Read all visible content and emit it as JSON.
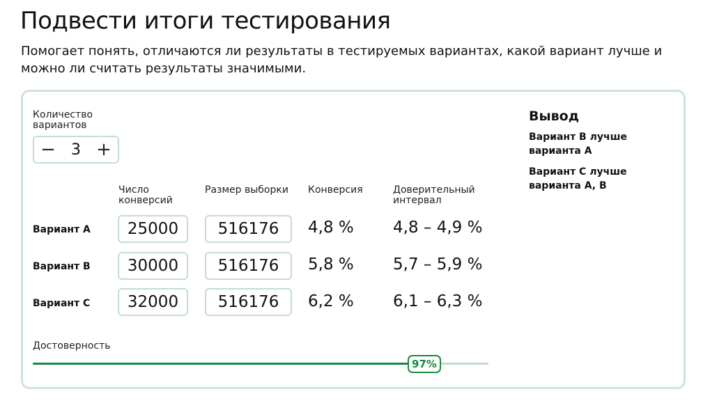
{
  "header": {
    "title": "Подвести итоги тестирования",
    "subtitle": "Помогает понять, отличаются ли результаты в тестируемых вариантах, какой вариант лучше и можно ли считать результаты значимыми."
  },
  "variants_count": {
    "label": "Количество вариантов",
    "value": "3",
    "minus_symbol": "−",
    "plus_symbol": "+"
  },
  "table": {
    "headers": {
      "conversions": "Число конверсий",
      "sample_size": "Размер выборки",
      "conversion": "Конверсия",
      "interval": "Доверительный интервал"
    },
    "rows": [
      {
        "label": "Вариант A",
        "conversions": "25000",
        "sample_size": "516176",
        "conversion": "4,8 %",
        "interval": "4,8 – 4,9 %"
      },
      {
        "label": "Вариант B",
        "conversions": "30000",
        "sample_size": "516176",
        "conversion": "5,8 %",
        "interval": "5,7 – 5,9 %"
      },
      {
        "label": "Вариант C",
        "conversions": "32000",
        "sample_size": "516176",
        "conversion": "6,2 %",
        "interval": "6,1 – 6,3 %"
      }
    ]
  },
  "conclusion": {
    "title": "Вывод",
    "items": [
      "Вариант B лучше варианта A",
      "Вариант C лучше варианта A, B"
    ]
  },
  "confidence": {
    "label": "Достоверность",
    "value_text": "97%",
    "fraction": 0.97
  },
  "colors": {
    "accent": "#16883f",
    "border": "#cfe3dc",
    "track": "#bfd9cf"
  }
}
